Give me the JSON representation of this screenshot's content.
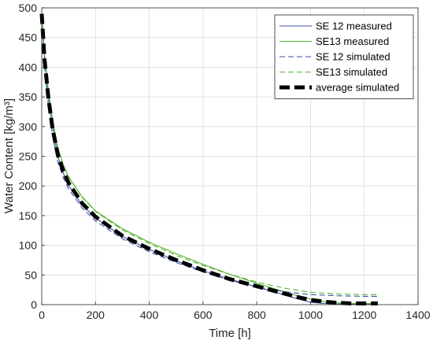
{
  "chart_data": {
    "type": "line",
    "title": "",
    "xlabel": "Time [h]",
    "ylabel": "Water Content [kg/m³]",
    "xlim": [
      0,
      1400
    ],
    "ylim": [
      0,
      500
    ],
    "xticks": [
      0,
      200,
      400,
      600,
      800,
      1000,
      1200,
      1400
    ],
    "yticks": [
      0,
      50,
      100,
      150,
      200,
      250,
      300,
      350,
      400,
      450,
      500
    ],
    "grid": true,
    "legend_position": "top-right",
    "series": [
      {
        "name": "SE 12 measured",
        "color": "#3b4fa8",
        "style": "solid",
        "x": [
          0,
          10,
          25,
          40,
          60,
          80,
          100,
          150,
          200,
          300,
          400,
          500,
          600,
          700,
          800,
          900,
          950,
          1000,
          1050,
          1100,
          1150,
          1200,
          1250
        ],
        "y": [
          490,
          420,
          350,
          300,
          250,
          222,
          201,
          168,
          146,
          115,
          93,
          74,
          57,
          43,
          30,
          17,
          10,
          4,
          2,
          1,
          1,
          1,
          1
        ]
      },
      {
        "name": "SE13 measured",
        "color": "#55b52f",
        "style": "solid",
        "x": [
          0,
          10,
          25,
          40,
          60,
          80,
          100,
          150,
          200,
          300,
          400,
          500,
          600,
          700,
          800,
          900,
          950,
          1000,
          1050,
          1100,
          1150,
          1200,
          1250
        ],
        "y": [
          490,
          425,
          360,
          312,
          265,
          236,
          215,
          182,
          158,
          128,
          105,
          86,
          68,
          51,
          36,
          22,
          15,
          9,
          5,
          3,
          2,
          2,
          2
        ]
      },
      {
        "name": "SE 12 simulated",
        "color": "#3b4fa8",
        "style": "dashed",
        "x": [
          0,
          10,
          25,
          40,
          60,
          80,
          100,
          150,
          200,
          300,
          400,
          500,
          600,
          700,
          800,
          900,
          1000,
          1100,
          1200,
          1250
        ],
        "y": [
          490,
          405,
          335,
          285,
          240,
          214,
          195,
          163,
          141,
          111,
          89,
          71,
          55,
          41,
          30,
          22,
          17,
          15,
          14,
          14
        ]
      },
      {
        "name": "SE13 simulated",
        "color": "#55b52f",
        "style": "dashed",
        "x": [
          0,
          10,
          25,
          40,
          60,
          80,
          100,
          150,
          200,
          300,
          400,
          500,
          600,
          700,
          800,
          900,
          1000,
          1100,
          1200,
          1250
        ],
        "y": [
          490,
          420,
          355,
          308,
          262,
          236,
          216,
          181,
          157,
          126,
          103,
          83,
          66,
          51,
          38,
          28,
          21,
          18,
          17,
          17
        ]
      },
      {
        "name": "average simulated",
        "color": "#000000",
        "style": "thick-dashed",
        "x": [
          0,
          10,
          25,
          40,
          60,
          80,
          100,
          150,
          200,
          300,
          400,
          500,
          600,
          700,
          800,
          900,
          950,
          1000,
          1050,
          1100,
          1150,
          1200,
          1250
        ],
        "y": [
          490,
          415,
          348,
          297,
          252,
          225,
          205,
          171,
          148,
          116,
          94,
          75,
          58,
          43,
          31,
          19,
          13,
          8,
          5,
          3,
          2,
          2,
          2
        ]
      }
    ]
  }
}
